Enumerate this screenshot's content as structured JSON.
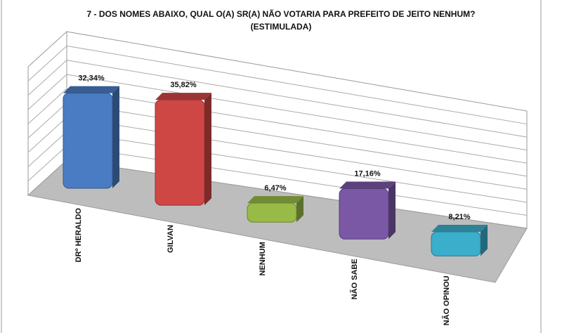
{
  "chart_data": {
    "type": "bar3d",
    "title": "7 -  DOS NOMES ABAIXO, QUAL O(A) SR(A) NÃO VOTARIA PARA PREFEITO DE JEITO NENHUM?",
    "subtitle": "(ESTIMULADA)",
    "categories": [
      "DRº HERALDO",
      "GILVAN",
      "NENHUM",
      "NÃO SABE",
      "NÃO OPINOU"
    ],
    "values": [
      32.34,
      35.82,
      6.47,
      17.16,
      8.21
    ],
    "value_labels": [
      "32,34%",
      "35,82%",
      "6,47%",
      "17,16%",
      "8,21%"
    ],
    "colors": [
      "#4a7cc4",
      "#cf4744",
      "#98bb47",
      "#7b58a6",
      "#3aaecb"
    ]
  }
}
